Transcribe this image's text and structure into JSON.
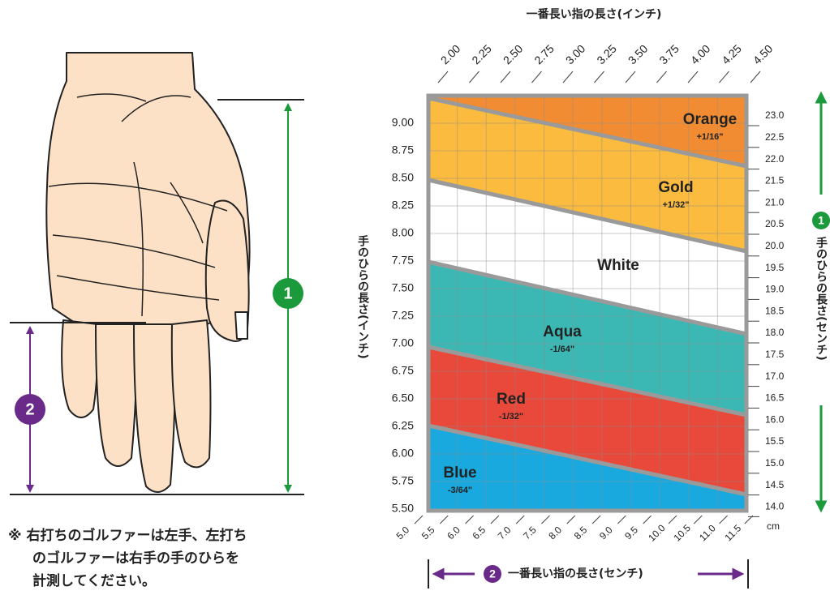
{
  "top_axis_label": "一番長い指の長さ(インチ)",
  "left_axis_label": "手のひらの長さ(インチ)",
  "right_axis_label": "手のひらの長さ(センチ)",
  "bottom_axis_label": "一番長い指の長さ(センチ)",
  "hand_markers": [
    "1",
    "2"
  ],
  "right_marker": "1",
  "bottom_marker": "2",
  "top_ticks": [
    "2.00",
    "2.25",
    "2.50",
    "2.75",
    "3.00",
    "3.25",
    "3.50",
    "3.75",
    "4.00",
    "4.25",
    "4.50"
  ],
  "left_ticks": [
    "9.00",
    "8.75",
    "8.50",
    "8.25",
    "8.00",
    "7.75",
    "7.50",
    "7.25",
    "7.00",
    "6.75",
    "6.50",
    "6.25",
    "6.00",
    "5.75",
    "5.50"
  ],
  "right_ticks": [
    "23.0",
    "22.5",
    "22.0",
    "21.5",
    "21.0",
    "20.5",
    "20.0",
    "19.5",
    "19.0",
    "18.5",
    "18.0",
    "17.5",
    "17.0",
    "16.5",
    "16.0",
    "15.5",
    "15.0",
    "14.5",
    "14.0"
  ],
  "right_unit": "cm",
  "bottom_ticks": [
    "5.0",
    "5.5",
    "6.0",
    "6.5",
    "7.0",
    "7.5",
    "8.0",
    "8.5",
    "9.0",
    "9.5",
    "10.0",
    "10.5",
    "11.0",
    "11.5"
  ],
  "bands": [
    {
      "name": "Orange",
      "adjust": "+1/16\"",
      "color": "#f28c33"
    },
    {
      "name": "Gold",
      "adjust": "+1/32\"",
      "color": "#fbbb3f"
    },
    {
      "name": "White",
      "color": "#ffffff"
    },
    {
      "name": "Aqua",
      "adjust": "-1/64\"",
      "color": "#3cb8b4"
    },
    {
      "name": "Red",
      "adjust": "-1/32\"",
      "color": "#e8493a"
    },
    {
      "name": "Blue",
      "adjust": "-3/64\"",
      "color": "#1aa9de"
    }
  ],
  "note": [
    "※ 右打ちのゴルファーは左手、左打ち",
    "のゴルファーは右手の手のひらを",
    "計測してください。"
  ]
}
